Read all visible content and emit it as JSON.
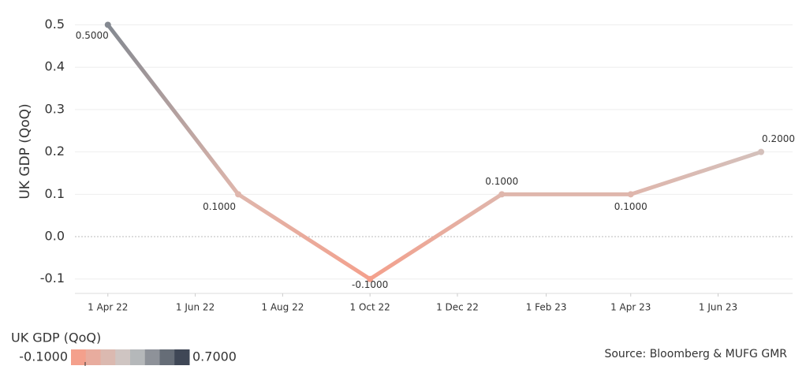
{
  "chart_data": {
    "type": "line",
    "y_label": "UK GDP (QoQ)",
    "source": "Source: Bloomberg & MUFG GMR",
    "x": [
      "2022-04-01",
      "2022-07-01",
      "2022-10-01",
      "2023-01-01",
      "2023-04-01",
      "2023-07-01"
    ],
    "values": [
      0.5,
      0.1,
      -0.1,
      0.1,
      0.1,
      0.2
    ],
    "value_labels": [
      "0.5000",
      "0.1000",
      "-0.1000",
      "0.1000",
      "0.1000",
      "0.2000"
    ],
    "xlim": [
      "2022-03-09",
      "2023-07-23"
    ],
    "xticks": [
      {
        "value": "2022-04-01",
        "label": "1 Apr 22"
      },
      {
        "value": "2022-06-01",
        "label": "1 Jun 22"
      },
      {
        "value": "2022-08-01",
        "label": "1 Aug 22"
      },
      {
        "value": "2022-10-01",
        "label": "1 Oct 22"
      },
      {
        "value": "2022-12-01",
        "label": "1 Dec 22"
      },
      {
        "value": "2023-02-01",
        "label": "1 Feb 23"
      },
      {
        "value": "2023-04-01",
        "label": "1 Apr 23"
      },
      {
        "value": "2023-06-01",
        "label": "1 Jun 23"
      }
    ],
    "ylim": [
      -0.134,
      0.54
    ],
    "yticks": [
      -0.1,
      {
        "value": 0,
        "label": "0.0"
      },
      0.1,
      0.2,
      0.3,
      0.4,
      0.5
    ],
    "grid": true,
    "color_legend": {
      "title": "UK GDP (QoQ)",
      "min": {
        "value": -0.1,
        "label": "-0.1000"
      },
      "max": {
        "value": 0.7,
        "label": "0.7000"
      },
      "colors": [
        "#f4a08c",
        "#c9cbcb",
        "#3f4756"
      ]
    }
  }
}
